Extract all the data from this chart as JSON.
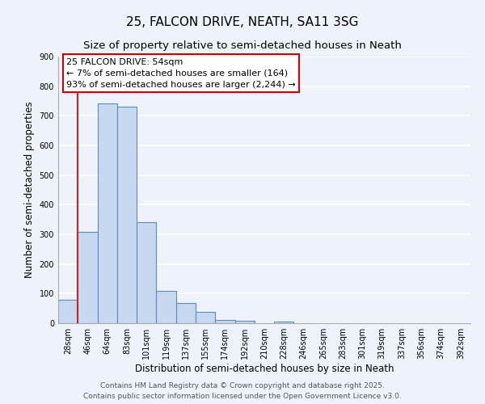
{
  "title": "25, FALCON DRIVE, NEATH, SA11 3SG",
  "subtitle": "Size of property relative to semi-detached houses in Neath",
  "xlabel": "Distribution of semi-detached houses by size in Neath",
  "ylabel": "Number of semi-detached properties",
  "bar_color": "#c8d8f0",
  "bar_edge_color": "#5b8db8",
  "background_color": "#eef2fb",
  "grid_color": "#ffffff",
  "categories": [
    "28sqm",
    "46sqm",
    "64sqm",
    "83sqm",
    "101sqm",
    "119sqm",
    "137sqm",
    "155sqm",
    "174sqm",
    "192sqm",
    "210sqm",
    "228sqm",
    "246sqm",
    "265sqm",
    "283sqm",
    "301sqm",
    "319sqm",
    "337sqm",
    "356sqm",
    "374sqm",
    "392sqm"
  ],
  "values": [
    80,
    308,
    743,
    730,
    340,
    108,
    68,
    38,
    12,
    8,
    0,
    5,
    0,
    0,
    0,
    0,
    0,
    0,
    0,
    0,
    0
  ],
  "ylim": [
    0,
    900
  ],
  "yticks": [
    0,
    100,
    200,
    300,
    400,
    500,
    600,
    700,
    800,
    900
  ],
  "red_line_x": 1.0,
  "annotation_line1": "25 FALCON DRIVE: 54sqm",
  "annotation_line2": "← 7% of semi-detached houses are smaller (164)",
  "annotation_line3": "93% of semi-detached houses are larger (2,244) →",
  "annotation_box_color": "#ffffff",
  "annotation_box_edge_color": "#cc0000",
  "annotation_text_color": "#000000",
  "red_line_color": "#cc2222",
  "footer_line1": "Contains HM Land Registry data © Crown copyright and database right 2025.",
  "footer_line2": "Contains public sector information licensed under the Open Government Licence v3.0.",
  "title_fontsize": 11,
  "subtitle_fontsize": 9.5,
  "tick_fontsize": 7,
  "axis_label_fontsize": 8.5,
  "annotation_fontsize": 8,
  "footer_fontsize": 6.5
}
